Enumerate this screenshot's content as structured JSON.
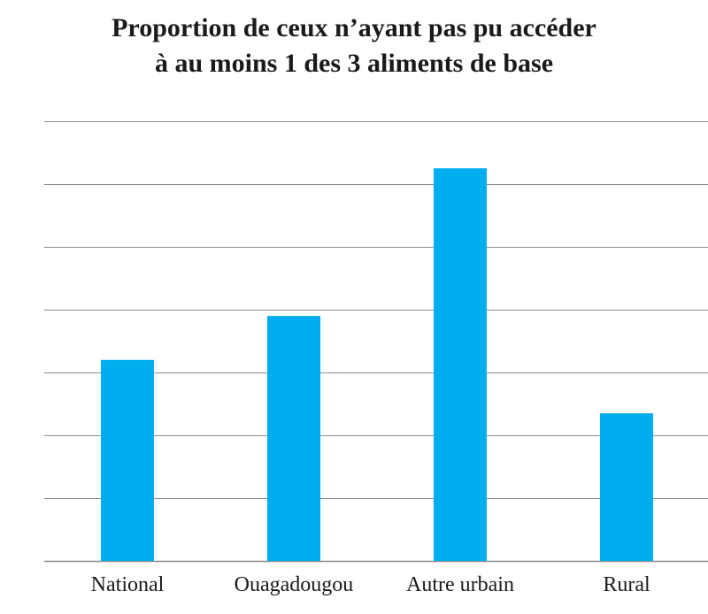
{
  "title_line1": "Proportion de ceux n’ayant pas pu accéder",
  "title_line2": "à au moins 1 des 3 aliments de base",
  "chart_data": {
    "type": "bar",
    "categories": [
      "National",
      "Ouagadougou",
      "Autre urbain",
      "Rural"
    ],
    "values": [
      32,
      39,
      62.5,
      23.5
    ],
    "ylim": [
      0,
      70
    ],
    "grid": true,
    "yticks_visible": false,
    "bar_color": "#00AEEF",
    "grid_color": "#8c8c8c"
  }
}
